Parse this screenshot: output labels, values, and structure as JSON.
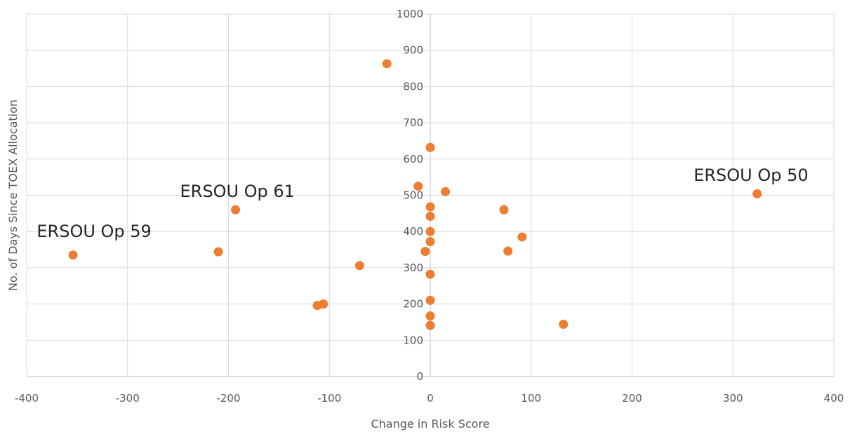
{
  "chart_data": {
    "type": "scatter",
    "xlabel": "Change in Risk Score",
    "ylabel": "No. of Days Since TOEX Allocation",
    "xlim": [
      -400,
      400
    ],
    "ylim": [
      0,
      1000
    ],
    "x_ticks": [
      "-400",
      "-300",
      "-200",
      "-100",
      "0",
      "100",
      "200",
      "300",
      "400"
    ],
    "y_ticks": [
      "0",
      "100",
      "200",
      "300",
      "400",
      "500",
      "600",
      "700",
      "800",
      "900",
      "1000"
    ],
    "grid": true,
    "marker_color": "#ED7D31",
    "points": [
      {
        "x": -354,
        "y": 335
      },
      {
        "x": -210,
        "y": 344
      },
      {
        "x": -193,
        "y": 460
      },
      {
        "x": -112,
        "y": 196
      },
      {
        "x": -106,
        "y": 200
      },
      {
        "x": -70,
        "y": 306
      },
      {
        "x": -43,
        "y": 863
      },
      {
        "x": -12,
        "y": 525
      },
      {
        "x": -5,
        "y": 345
      },
      {
        "x": 0,
        "y": 632
      },
      {
        "x": 0,
        "y": 468
      },
      {
        "x": 0,
        "y": 442
      },
      {
        "x": 0,
        "y": 400
      },
      {
        "x": 0,
        "y": 372
      },
      {
        "x": 0,
        "y": 282
      },
      {
        "x": 0,
        "y": 210
      },
      {
        "x": 0,
        "y": 167
      },
      {
        "x": 0,
        "y": 141
      },
      {
        "x": 15,
        "y": 510
      },
      {
        "x": 73,
        "y": 460
      },
      {
        "x": 77,
        "y": 346
      },
      {
        "x": 91,
        "y": 385
      },
      {
        "x": 132,
        "y": 144
      },
      {
        "x": 324,
        "y": 504
      }
    ],
    "annotations": [
      {
        "text": "ERSOU Op 59",
        "x": -390,
        "y": 385
      },
      {
        "text": "ERSOU Op 61",
        "x": -248,
        "y": 495
      },
      {
        "text": "ERSOU Op 50",
        "x": 261,
        "y": 540
      }
    ]
  }
}
